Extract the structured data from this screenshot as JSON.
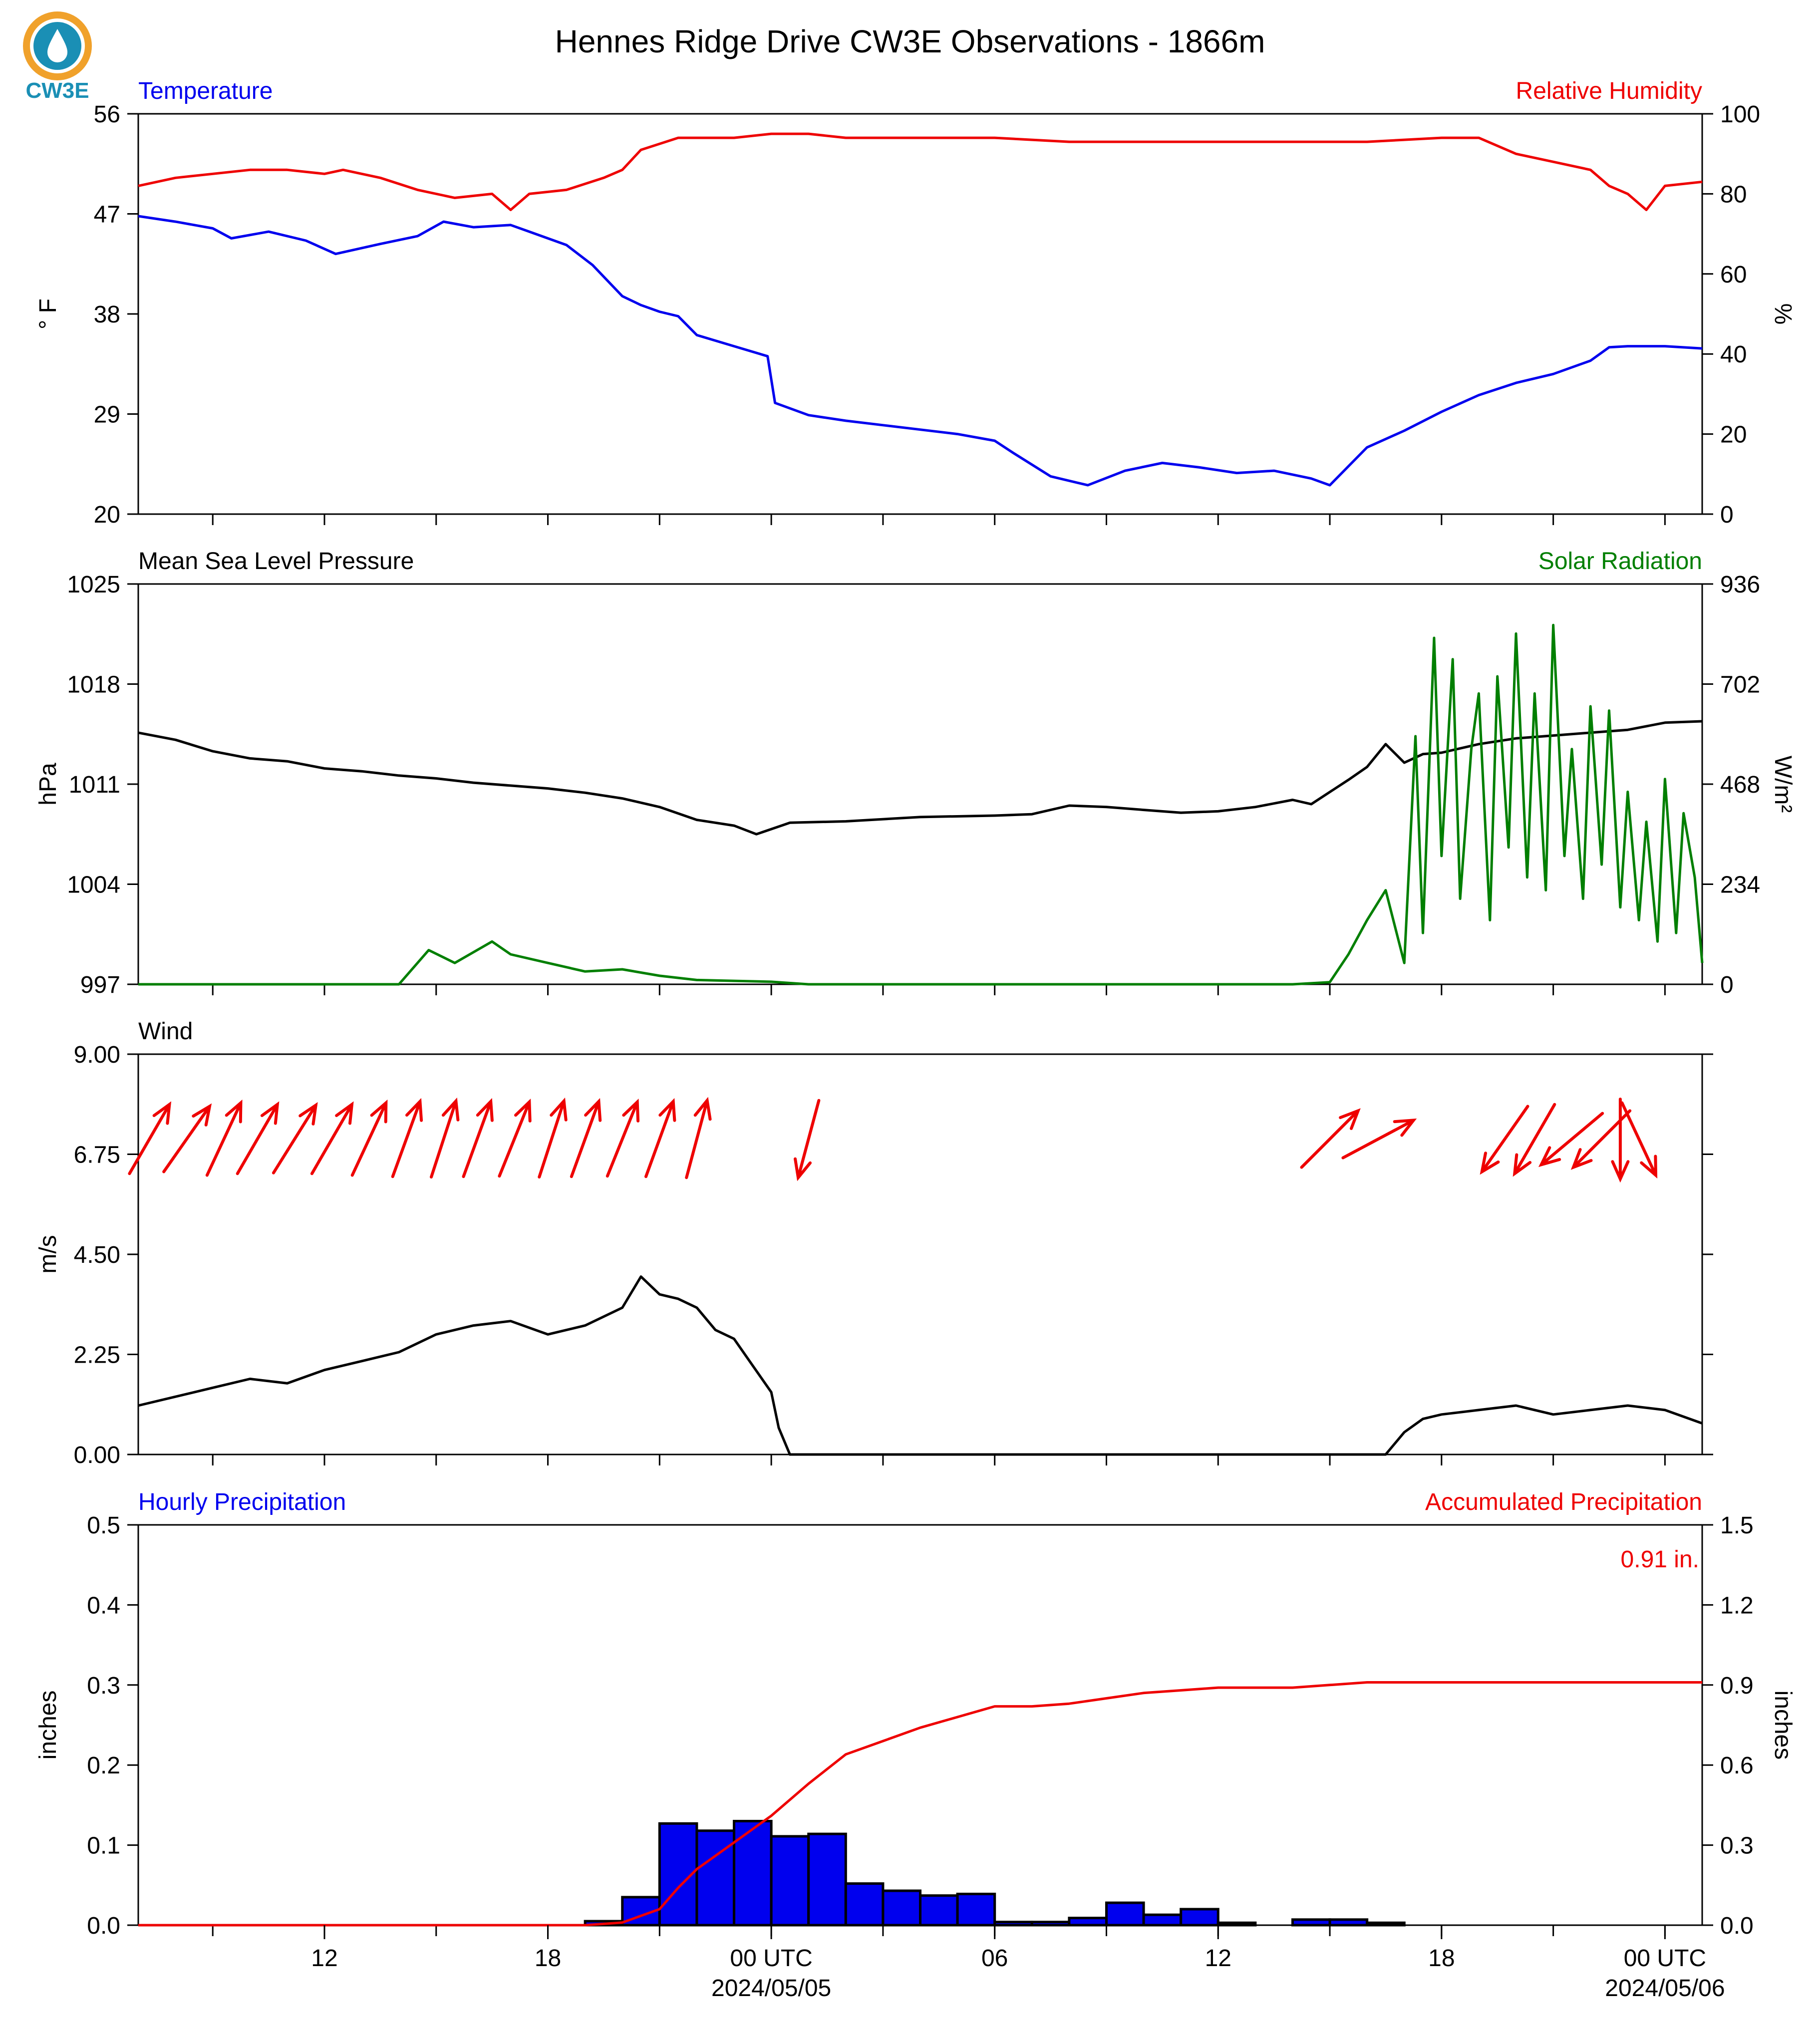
{
  "title": "Hennes Ridge Drive CW3E Observations - 1866m",
  "logo": {
    "text": "CW3E",
    "icon": "water-drop-icon",
    "color": "#1a8fb5",
    "accent": "#f0a12b"
  },
  "x_axis": {
    "start_hour": 7,
    "end_hour": 49,
    "ticks": [
      {
        "hour": 12,
        "label": "12"
      },
      {
        "hour": 18,
        "label": "18"
      },
      {
        "hour": 24,
        "label": "00 UTC",
        "sublabel": "2024/05/05"
      },
      {
        "hour": 30,
        "label": "06"
      },
      {
        "hour": 36,
        "label": "12"
      },
      {
        "hour": 42,
        "label": "18"
      },
      {
        "hour": 48,
        "label": "00 UTC",
        "sublabel": "2024/05/06"
      }
    ]
  },
  "colors": {
    "temperature": "#0000ee",
    "humidity": "#ee0000",
    "pressure": "#000000",
    "solar": "#007f00",
    "wind": "#000000",
    "arrows": "#ee0000",
    "hourly": "#0000ee",
    "accum": "#ee0000"
  },
  "chart_data": [
    {
      "type": "line",
      "panel": "temperature-humidity",
      "left_title": "Temperature",
      "right_title": "Relative Humidity",
      "ylabel_left": "° F",
      "ylabel_right": "%",
      "ylim_left": [
        20,
        56
      ],
      "ylim_right": [
        0,
        100
      ],
      "yticks_left": [
        "20",
        "29",
        "38",
        "47",
        "56"
      ],
      "yticks_right": [
        "0",
        "20",
        "40",
        "60",
        "80",
        "100"
      ],
      "series": [
        {
          "name": "Temperature",
          "axis": "left",
          "x": [
            7.0,
            8.0,
            9.0,
            9.5,
            10.5,
            11.5,
            12.3,
            13.5,
            14.5,
            15.2,
            16.0,
            17.0,
            17.5,
            18.5,
            19.2,
            20.0,
            20.5,
            21.0,
            21.5,
            22.0,
            23.0,
            23.9,
            24.1,
            25.0,
            26.0,
            27.0,
            28.0,
            29.0,
            30.0,
            30.5,
            31.5,
            32.5,
            33.5,
            34.5,
            35.5,
            36.5,
            37.5,
            38.5,
            39.0,
            40.0,
            41.0,
            42.0,
            43.0,
            44.0,
            45.0,
            46.0,
            46.5,
            47.0,
            48.0,
            49.0
          ],
          "y": [
            46.8,
            46.3,
            45.7,
            44.8,
            45.4,
            44.6,
            43.4,
            44.3,
            45.0,
            46.3,
            45.8,
            46.0,
            45.4,
            44.2,
            42.4,
            39.6,
            38.8,
            38.2,
            37.8,
            36.1,
            35.1,
            34.2,
            30.0,
            28.9,
            28.4,
            28.0,
            27.6,
            27.2,
            26.6,
            25.5,
            23.4,
            22.6,
            23.9,
            24.6,
            24.2,
            23.7,
            23.9,
            23.2,
            22.6,
            26.0,
            27.5,
            29.2,
            30.7,
            31.8,
            32.6,
            33.8,
            35.0,
            35.1,
            35.1,
            34.9
          ]
        },
        {
          "name": "Relative Humidity",
          "axis": "right",
          "x": [
            7.0,
            8.0,
            9.0,
            10.0,
            11.0,
            12.0,
            12.5,
            13.5,
            14.5,
            15.5,
            16.5,
            17.0,
            17.5,
            18.5,
            19.5,
            20.0,
            20.5,
            21.5,
            22.0,
            23.0,
            24.0,
            25.0,
            26.0,
            28.0,
            30.0,
            32.0,
            35.0,
            38.0,
            40.0,
            42.0,
            43.0,
            44.0,
            45.0,
            46.0,
            46.5,
            47.0,
            47.5,
            48.0,
            49.0
          ],
          "y": [
            82,
            84,
            85,
            86,
            86,
            85,
            86,
            84,
            81,
            79,
            80,
            76,
            80,
            81,
            84,
            86,
            91,
            94,
            94,
            94,
            95,
            95,
            94,
            94,
            94,
            93,
            93,
            93,
            93,
            94,
            94,
            90,
            88,
            86,
            82,
            80,
            76,
            82,
            83
          ]
        }
      ]
    },
    {
      "type": "line",
      "panel": "pressure-solar",
      "left_title": "Mean Sea Level Pressure",
      "right_title": "Solar Radiation",
      "ylabel_left": "hPa",
      "ylabel_right": "W/m²",
      "ylim_left": [
        997,
        1025
      ],
      "ylim_right": [
        0,
        936
      ],
      "yticks_left": [
        "997",
        "1004",
        "1011",
        "1018",
        "1025"
      ],
      "yticks_right": [
        "0",
        "234",
        "468",
        "702",
        "936"
      ],
      "series": [
        {
          "name": "Mean Sea Level Pressure",
          "axis": "left",
          "x": [
            7.0,
            8.0,
            9.0,
            10.0,
            11.0,
            12.0,
            13.0,
            14.0,
            15.0,
            16.0,
            17.0,
            18.0,
            19.0,
            20.0,
            21.0,
            22.0,
            23.0,
            23.6,
            24.5,
            26.0,
            28.0,
            30.0,
            31.0,
            32.0,
            33.0,
            34.0,
            35.0,
            36.0,
            37.0,
            38.0,
            38.5,
            39.5,
            40.0,
            40.5,
            41.0,
            41.5,
            42.0,
            43.0,
            44.0,
            45.0,
            46.0,
            47.0,
            48.0,
            49.0
          ],
          "y": [
            1014.6,
            1014.1,
            1013.3,
            1012.8,
            1012.6,
            1012.1,
            1011.9,
            1011.6,
            1011.4,
            1011.1,
            1010.9,
            1010.7,
            1010.4,
            1010.0,
            1009.4,
            1008.5,
            1008.1,
            1007.5,
            1008.3,
            1008.4,
            1008.7,
            1008.8,
            1008.9,
            1009.5,
            1009.4,
            1009.2,
            1009.0,
            1009.1,
            1009.4,
            1009.9,
            1009.6,
            1011.3,
            1012.2,
            1013.8,
            1012.5,
            1013.1,
            1013.2,
            1013.8,
            1014.2,
            1014.4,
            1014.6,
            1014.8,
            1015.3,
            1015.4
          ]
        },
        {
          "name": "Solar Radiation",
          "axis": "right",
          "x": [
            7.0,
            13.0,
            14.0,
            14.8,
            15.5,
            16.5,
            17.0,
            18.0,
            19.0,
            20.0,
            21.0,
            22.0,
            23.0,
            24.0,
            25.0,
            30.0,
            35.0,
            38.0,
            39.0,
            39.5,
            40.0,
            40.5,
            41.0,
            41.3,
            41.5,
            41.8,
            42.0,
            42.3,
            42.5,
            42.8,
            43.0,
            43.3,
            43.5,
            43.8,
            44.0,
            44.3,
            44.5,
            44.8,
            45.0,
            45.3,
            45.5,
            45.8,
            46.0,
            46.3,
            46.5,
            46.8,
            47.0,
            47.3,
            47.5,
            47.8,
            48.0,
            48.3,
            48.5,
            48.8,
            49.0
          ],
          "y": [
            0,
            0,
            0,
            80,
            50,
            100,
            70,
            50,
            30,
            35,
            20,
            10,
            8,
            6,
            0,
            0,
            0,
            0,
            5,
            70,
            150,
            220,
            50,
            580,
            120,
            810,
            300,
            760,
            200,
            550,
            680,
            150,
            720,
            320,
            820,
            250,
            680,
            220,
            840,
            300,
            550,
            200,
            650,
            280,
            640,
            180,
            450,
            150,
            380,
            100,
            480,
            120,
            400,
            250,
            50
          ]
        }
      ]
    },
    {
      "type": "line",
      "panel": "wind",
      "left_title": "Wind",
      "ylabel_left": "m/s",
      "ylim_left": [
        0,
        9
      ],
      "yticks_left": [
        "0.00",
        "2.25",
        "4.50",
        "6.75",
        "9.00"
      ],
      "series": [
        {
          "name": "Wind",
          "axis": "left",
          "x": [
            7.0,
            8.0,
            9.0,
            10.0,
            11.0,
            12.0,
            13.0,
            14.0,
            15.0,
            16.0,
            17.0,
            18.0,
            19.0,
            20.0,
            20.5,
            21.0,
            21.5,
            22.0,
            22.5,
            23.0,
            23.5,
            24.0,
            24.2,
            24.5,
            40.5,
            41.0,
            41.5,
            42.0,
            43.0,
            44.0,
            45.0,
            46.0,
            47.0,
            48.0,
            49.0
          ],
          "y": [
            1.1,
            1.3,
            1.5,
            1.7,
            1.6,
            1.9,
            2.1,
            2.3,
            2.7,
            2.9,
            3.0,
            2.7,
            2.9,
            3.3,
            4.0,
            3.6,
            3.5,
            3.3,
            2.8,
            2.6,
            2.0,
            1.4,
            0.6,
            0,
            0,
            0.5,
            0.8,
            0.9,
            1.0,
            1.1,
            0.9,
            1.0,
            1.1,
            1.0,
            0.7
          ]
        }
      ],
      "arrows": [
        {
          "hour": 7.3,
          "direction_deg": 150
        },
        {
          "hour": 8.3,
          "direction_deg": 145
        },
        {
          "hour": 9.3,
          "direction_deg": 155
        },
        {
          "hour": 10.2,
          "direction_deg": 150
        },
        {
          "hour": 11.2,
          "direction_deg": 148
        },
        {
          "hour": 12.2,
          "direction_deg": 150
        },
        {
          "hour": 13.2,
          "direction_deg": 155
        },
        {
          "hour": 14.2,
          "direction_deg": 160
        },
        {
          "hour": 15.2,
          "direction_deg": 162
        },
        {
          "hour": 16.1,
          "direction_deg": 160
        },
        {
          "hour": 17.1,
          "direction_deg": 158
        },
        {
          "hour": 18.1,
          "direction_deg": 162
        },
        {
          "hour": 19.0,
          "direction_deg": 160
        },
        {
          "hour": 20.0,
          "direction_deg": 158
        },
        {
          "hour": 21.0,
          "direction_deg": 160
        },
        {
          "hour": 22.0,
          "direction_deg": 165
        },
        {
          "hour": 25.0,
          "direction_deg": 345
        },
        {
          "hour": 39.0,
          "direction_deg": 135
        },
        {
          "hour": 40.3,
          "direction_deg": 118
        },
        {
          "hour": 43.7,
          "direction_deg": 325
        },
        {
          "hour": 44.5,
          "direction_deg": 330
        },
        {
          "hour": 45.5,
          "direction_deg": 310
        },
        {
          "hour": 46.3,
          "direction_deg": 315
        },
        {
          "hour": 46.8,
          "direction_deg": 0
        },
        {
          "hour": 47.3,
          "direction_deg": 25
        }
      ]
    },
    {
      "type": "bar",
      "panel": "precipitation",
      "left_title": "Hourly Precipitation",
      "right_title": "Accumulated Precipitation",
      "annotation": "0.91 in.",
      "ylabel_left": "inches",
      "ylabel_right": "inches",
      "ylim_left": [
        0,
        0.5
      ],
      "ylim_right": [
        0,
        1.5
      ],
      "yticks_left": [
        "0.0",
        "0.1",
        "0.2",
        "0.3",
        "0.4",
        "0.5"
      ],
      "yticks_right": [
        "0.0",
        "0.3",
        "0.6",
        "0.9",
        "1.2",
        "1.5"
      ],
      "bars": {
        "name": "Hourly Precipitation",
        "hours": [
          19,
          20,
          21,
          22,
          23,
          24,
          25,
          26,
          27,
          28,
          29,
          30,
          31,
          32,
          33,
          34,
          35,
          36,
          37,
          38,
          39,
          40,
          41,
          42
        ],
        "values": [
          0.005,
          0.035,
          0.127,
          0.118,
          0.13,
          0.111,
          0.114,
          0.052,
          0.043,
          0.037,
          0.039,
          0.004,
          0.004,
          0.009,
          0.028,
          0.013,
          0.02,
          0.003,
          0,
          0.007,
          0.007,
          0.003,
          0,
          0
        ]
      },
      "series": [
        {
          "name": "Accumulated Precipitation",
          "axis": "right",
          "x": [
            7.0,
            19.0,
            20.0,
            21.0,
            21.5,
            22.0,
            23.0,
            24.0,
            25.0,
            26.0,
            27.0,
            28.0,
            29.0,
            30.0,
            31.0,
            32.0,
            33.0,
            34.0,
            35.0,
            36.0,
            37.0,
            38.0,
            39.0,
            40.0,
            41.0,
            42.0,
            49.0
          ],
          "y": [
            0,
            0,
            0.01,
            0.06,
            0.14,
            0.21,
            0.31,
            0.41,
            0.53,
            0.64,
            0.69,
            0.74,
            0.78,
            0.82,
            0.82,
            0.83,
            0.85,
            0.87,
            0.88,
            0.89,
            0.89,
            0.89,
            0.9,
            0.91,
            0.91,
            0.91,
            0.91
          ]
        }
      ]
    }
  ]
}
